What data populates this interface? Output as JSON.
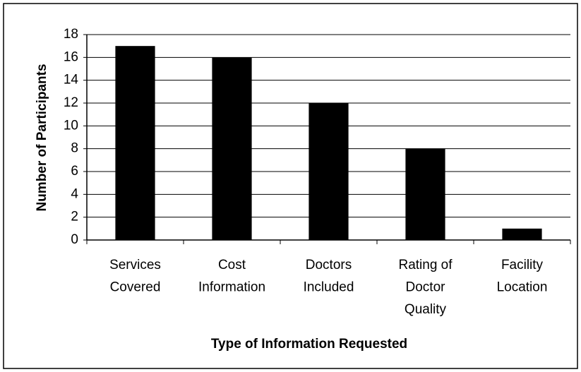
{
  "chart_data": {
    "type": "bar",
    "x_label": "Type of Information Requested",
    "y_label": "Number of Participants",
    "categories": [
      [
        "Services",
        "Covered"
      ],
      [
        "Cost",
        "Information"
      ],
      [
        "Doctors",
        "Included"
      ],
      [
        "Rating of",
        "Doctor",
        "Quality"
      ],
      [
        "Facility",
        "Location"
      ]
    ],
    "values": [
      17,
      16,
      12,
      8,
      1
    ],
    "color": "#000000",
    "ylim": [
      0,
      18
    ],
    "yticks": [
      0,
      2,
      4,
      6,
      8,
      10,
      12,
      14,
      16,
      18
    ],
    "grid": true
  }
}
